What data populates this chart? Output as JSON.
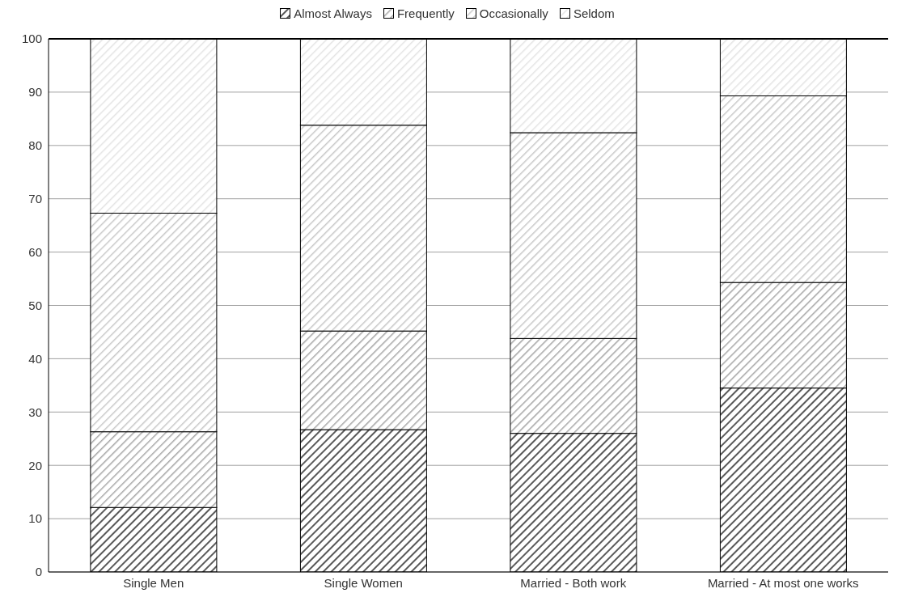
{
  "chart_data": {
    "type": "bar",
    "stacked": true,
    "categories": [
      "Single Men",
      "Single Women",
      "Married - Both work",
      "Married - At most one works"
    ],
    "series": [
      {
        "name": "Almost Always",
        "color": "#595959",
        "values": [
          12.1,
          26.7,
          26.0,
          34.5
        ]
      },
      {
        "name": "Frequently",
        "color": "#a6a6a6",
        "values": [
          14.2,
          18.5,
          17.8,
          19.8
        ]
      },
      {
        "name": "Occasionally",
        "color": "#c8c8c8",
        "values": [
          41.0,
          38.6,
          38.6,
          35.0
        ]
      },
      {
        "name": "Seldom",
        "color": "#e4e4e4",
        "values": [
          32.7,
          16.2,
          17.6,
          10.7
        ]
      }
    ],
    "ylim": [
      0,
      100
    ],
    "yticks": [
      0,
      10,
      20,
      30,
      40,
      50,
      60,
      70,
      80,
      90,
      100
    ],
    "grid": "y",
    "legend": "top"
  }
}
